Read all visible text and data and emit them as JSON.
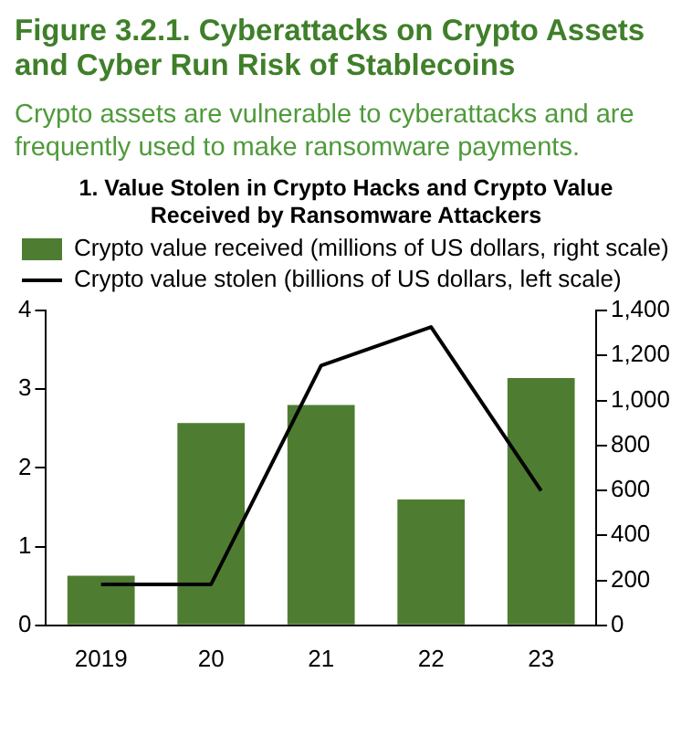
{
  "chart_data": {
    "type": "bar",
    "title": "Figure 3.2.1. Cyberattacks on Crypto Assets and Cyber Run Risk of Stablecoins",
    "subtitle": "Crypto assets are vulnerable to cyberattacks and are frequently used to make ransomware payments.",
    "annotations": [
      "1. Value Stolen in Crypto Hacks and Crypto Value Received by Ransomware Attackers"
    ],
    "categories": [
      "2019",
      "20",
      "21",
      "22",
      "23"
    ],
    "series": [
      {
        "name": "Crypto value received (millions of US dollars, right scale)",
        "axis": "y2",
        "color": "#4e7d32",
        "values": [
          220,
          900,
          980,
          560,
          1100
        ]
      },
      {
        "name": "Crypto value stolen (billions of US dollars, left scale)",
        "type": "line",
        "color": "#000000",
        "values": [
          0.52,
          0.52,
          3.3,
          3.79,
          1.71
        ]
      }
    ],
    "ylim": [
      0,
      4
    ],
    "yticks": [
      0,
      1,
      2,
      3,
      4
    ],
    "y2lim": [
      0,
      1400
    ],
    "y2ticks": [
      0,
      {
        "value": 200,
        "label": "200"
      },
      {
        "value": 400,
        "label": "400"
      },
      {
        "value": 600,
        "label": "600"
      },
      {
        "value": 800,
        "label": "800"
      },
      {
        "value": 1000,
        "label": "1,000"
      },
      {
        "value": 1200,
        "label": "1,200"
      },
      {
        "value": 1400,
        "label": "1,400"
      }
    ],
    "grid": false,
    "legend": "top left",
    "marker": "none",
    "line_style": "solid"
  }
}
